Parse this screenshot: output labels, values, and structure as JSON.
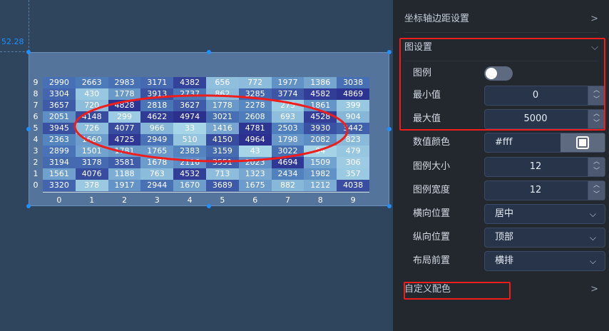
{
  "canvas": {
    "coord_readout": "52.28"
  },
  "chart_data": {
    "type": "heatmap",
    "x_categories": [
      "0",
      "1",
      "2",
      "3",
      "4",
      "5",
      "6",
      "7",
      "8",
      "9"
    ],
    "y_categories": [
      "0",
      "1",
      "2",
      "3",
      "4",
      "5",
      "6",
      "7",
      "8",
      "9"
    ],
    "value_range": [
      0,
      5000
    ],
    "color_low": "#a7d6e8",
    "color_mid": "#4f80bd",
    "color_high": "#2b2f8f",
    "label_color": "#ffffff",
    "rows": [
      {
        "y": "9",
        "values": [
          2990,
          2663,
          2983,
          3171,
          4382,
          656,
          772,
          1977,
          1386,
          3038
        ]
      },
      {
        "y": "8",
        "values": [
          3304,
          430,
          1778,
          3913,
          2737,
          862,
          3285,
          3774,
          4582,
          4869
        ]
      },
      {
        "y": "7",
        "values": [
          3657,
          720,
          4828,
          2818,
          3627,
          1778,
          2278,
          275,
          1861,
          399
        ]
      },
      {
        "y": "6",
        "values": [
          2051,
          4148,
          299,
          4622,
          4974,
          3021,
          2608,
          693,
          4528,
          904
        ]
      },
      {
        "y": "5",
        "values": [
          3945,
          726,
          4077,
          966,
          33,
          1416,
          4781,
          2503,
          3930,
          3442
        ]
      },
      {
        "y": "4",
        "values": [
          2363,
          1660,
          4725,
          2949,
          510,
          4150,
          4964,
          1798,
          2082,
          823
        ]
      },
      {
        "y": "3",
        "values": [
          2899,
          1501,
          1781,
          1765,
          2383,
          3159,
          43,
          3022,
          94,
          479
        ]
      },
      {
        "y": "2",
        "values": [
          3194,
          3178,
          3581,
          1678,
          2116,
          3551,
          2023,
          4694,
          1509,
          306
        ]
      },
      {
        "y": "1",
        "values": [
          1561,
          4076,
          1188,
          763,
          4532,
          713,
          1323,
          2434,
          1982,
          357
        ]
      },
      {
        "y": "0",
        "values": [
          3320,
          378,
          1917,
          2944,
          1670,
          3689,
          1675,
          882,
          1212,
          4038
        ]
      }
    ]
  },
  "panel": {
    "axis_margin": "坐标轴边距设置",
    "chart_settings": "图设置",
    "legend": {
      "label": "图例",
      "on": false
    },
    "min": {
      "label": "最小值",
      "value": "0"
    },
    "max": {
      "label": "最大值",
      "value": "5000"
    },
    "value_color": {
      "label": "数值颜色",
      "value": "#fff"
    },
    "legend_size": {
      "label": "图例大小",
      "value": "12"
    },
    "legend_width": {
      "label": "图例宽度",
      "value": "12"
    },
    "h_pos": {
      "label": "横向位置",
      "value": "居中"
    },
    "v_pos": {
      "label": "纵向位置",
      "value": "顶部"
    },
    "layout": {
      "label": "布局前置",
      "value": "横排"
    },
    "custom_colors": "自定义配色",
    "chev_right": ">",
    "chev_down": "⌵",
    "up": "︿",
    "down": "﹀"
  },
  "annotation_color": "#f01d1d"
}
